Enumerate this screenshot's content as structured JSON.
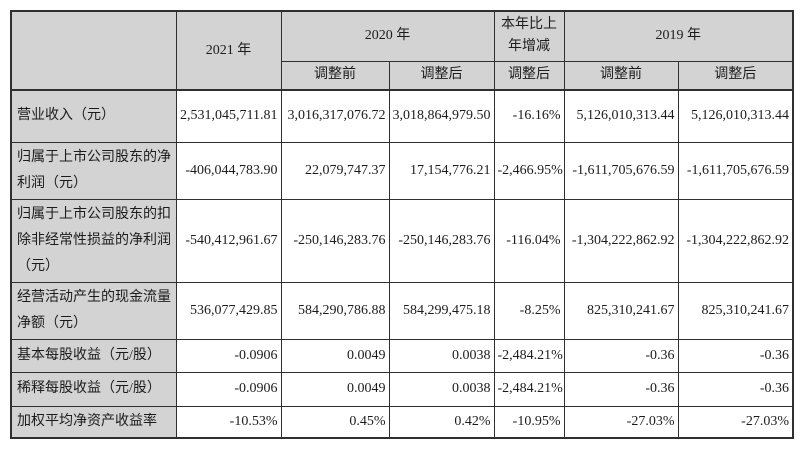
{
  "table": {
    "colors": {
      "header_bg": "#d3d3d3",
      "cell_bg": "#ffffff",
      "border": "#2f2f2f",
      "text": "#1c1c1c"
    },
    "header": {
      "corner": "",
      "col_2021": "2021 年",
      "col_2020": "2020 年",
      "col_change": "本年比上年增减",
      "col_2019": "2019 年",
      "sub_2020_before": "调整前",
      "sub_2020_after": "调整后",
      "sub_change_after": "调整后",
      "sub_2019_before": "调整前",
      "sub_2019_after": "调整后"
    },
    "rows": [
      {
        "label": "营业收入（元）",
        "values": [
          "2,531,045,711.81",
          "3,016,317,076.72",
          "3,018,864,979.50",
          "-16.16%",
          "5,126,010,313.44",
          "5,126,010,313.44"
        ]
      },
      {
        "label": "归属于上市公司股东的净利润（元）",
        "values": [
          "-406,044,783.90",
          "22,079,747.37",
          "17,154,776.21",
          "-2,466.95%",
          "-1,611,705,676.59",
          "-1,611,705,676.59"
        ]
      },
      {
        "label": "归属于上市公司股东的扣除非经常性损益的净利润（元）",
        "values": [
          "-540,412,961.67",
          "-250,146,283.76",
          "-250,146,283.76",
          "-116.04%",
          "-1,304,222,862.92",
          "-1,304,222,862.92"
        ]
      },
      {
        "label": "经营活动产生的现金流量净额（元）",
        "values": [
          "536,077,429.85",
          "584,290,786.88",
          "584,299,475.18",
          "-8.25%",
          "825,310,241.67",
          "825,310,241.67"
        ]
      },
      {
        "label": "基本每股收益（元/股）",
        "values": [
          "-0.0906",
          "0.0049",
          "0.0038",
          "-2,484.21%",
          "-0.36",
          "-0.36"
        ]
      },
      {
        "label": "稀释每股收益（元/股）",
        "values": [
          "-0.0906",
          "0.0049",
          "0.0038",
          "-2,484.21%",
          "-0.36",
          "-0.36"
        ]
      },
      {
        "label": "加权平均净资产收益率",
        "values": [
          "-10.53%",
          "0.45%",
          "0.42%",
          "-10.95%",
          "-27.03%",
          "-27.03%"
        ]
      }
    ]
  }
}
